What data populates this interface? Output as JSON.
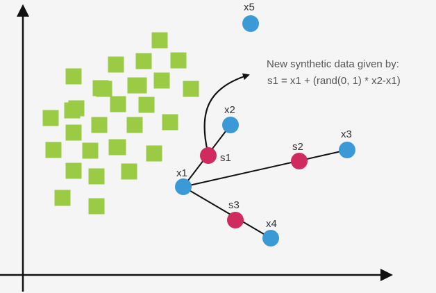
{
  "colors": {
    "background": "#f5f5f5",
    "axis": "#111111",
    "majority": "#9bcb45",
    "minority": "#3b9ad6",
    "synthetic": "#cf2b5e",
    "line": "#111111",
    "text": "#333333"
  },
  "axes": {
    "x_arrow": true,
    "y_arrow": true
  },
  "majority_samples": {
    "shape": "square",
    "count": 30
  },
  "minority_points": [
    {
      "id": "x1",
      "label": "x1"
    },
    {
      "id": "x2",
      "label": "x2"
    },
    {
      "id": "x3",
      "label": "x3"
    },
    {
      "id": "x4",
      "label": "x4"
    },
    {
      "id": "x5",
      "label": "x5"
    }
  ],
  "synthetic_points": [
    {
      "id": "s1",
      "label": "s1"
    },
    {
      "id": "s2",
      "label": "s2"
    },
    {
      "id": "s3",
      "label": "s3"
    }
  ],
  "formula": {
    "line1": "New synthetic data given by:",
    "line2": "s1 = x1 + (rand(0, 1) * x2-x1)"
  }
}
